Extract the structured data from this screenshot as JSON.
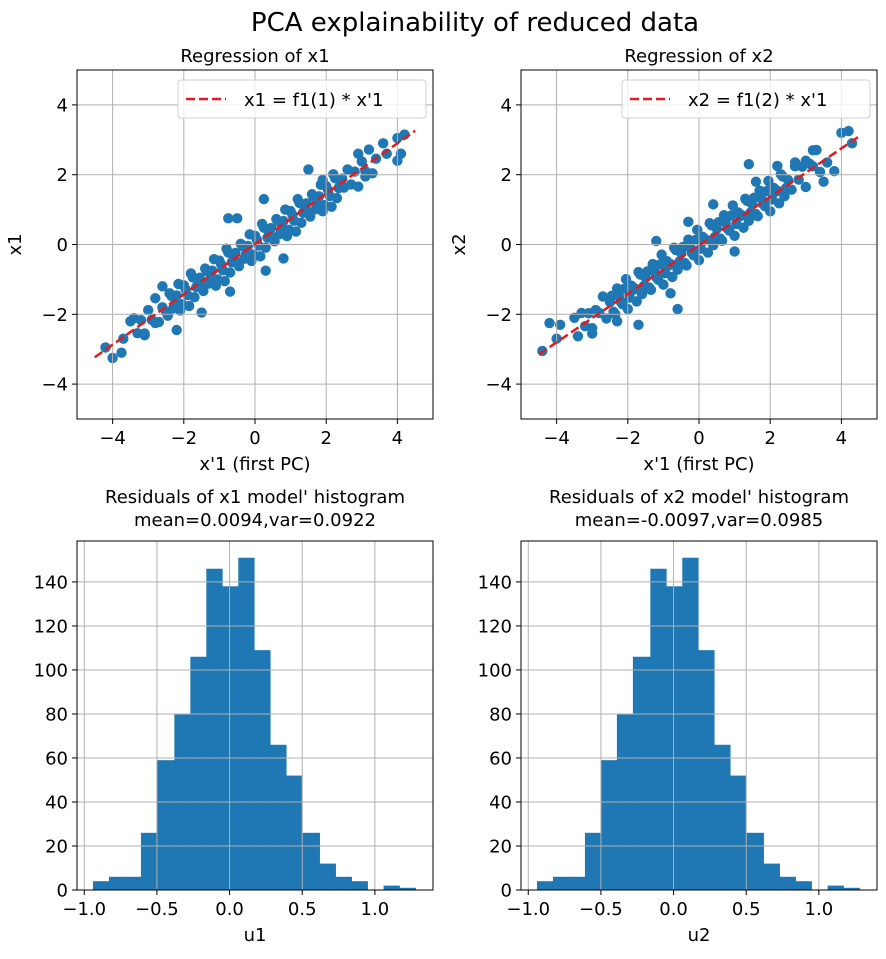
{
  "suptitle": "PCA explainability of reduced data",
  "colors": {
    "points": "#1f77b4",
    "bars": "#1f77b4",
    "fit_line": "#e41a1c",
    "grid": "#b0b0b0"
  },
  "chart_data": [
    {
      "type": "scatter",
      "title": "Regression of x1",
      "xlabel": "x'1 (first PC)",
      "ylabel": "x1",
      "xlim": [
        -5,
        5
      ],
      "ylim": [
        -5,
        5
      ],
      "xticks": [
        -4,
        -2,
        0,
        2,
        4
      ],
      "yticks": [
        -4,
        -2,
        0,
        2,
        4
      ],
      "xtick_labels": [
        "−4",
        "−2",
        "0",
        "2",
        "4"
      ],
      "ytick_labels": [
        "−4",
        "−2",
        "0",
        "2",
        "4"
      ],
      "grid": true,
      "legend": {
        "placement": "top-right",
        "label": "x1 = f1(1) * x'1"
      },
      "line": {
        "style": "dashed",
        "x": [
          -4.5,
          4.5
        ],
        "y": [
          -3.23,
          3.26
        ]
      },
      "points": [
        [
          -3.4,
          -2.11
        ],
        [
          -3.3,
          -2.54
        ],
        [
          -3.2,
          -2.17
        ],
        [
          -3.1,
          -2.6
        ],
        [
          -3.0,
          -1.88
        ],
        [
          -2.9,
          -2.16
        ],
        [
          -2.8,
          -1.54
        ],
        [
          -2.7,
          -2.22
        ],
        [
          -2.6,
          -1.8
        ],
        [
          -2.5,
          -1.93
        ],
        [
          -2.4,
          -1.4
        ],
        [
          -2.3,
          -1.83
        ],
        [
          -2.2,
          -1.46
        ],
        [
          -2.1,
          -1.89
        ],
        [
          -2.0,
          -1.17
        ],
        [
          -1.9,
          -1.45
        ],
        [
          -1.8,
          -0.83
        ],
        [
          -1.7,
          -1.51
        ],
        [
          -1.6,
          -1.09
        ],
        [
          -1.5,
          -1.22
        ],
        [
          -1.4,
          -0.69
        ],
        [
          -1.3,
          -1.12
        ],
        [
          -1.2,
          -0.75
        ],
        [
          -1.1,
          -1.18
        ],
        [
          -1.0,
          -0.46
        ],
        [
          -0.9,
          -0.74
        ],
        [
          -0.8,
          -0.12
        ],
        [
          -0.7,
          -0.8
        ],
        [
          -0.6,
          -0.38
        ],
        [
          -0.5,
          -0.51
        ],
        [
          -0.4,
          0.02
        ],
        [
          -0.3,
          -0.41
        ],
        [
          -0.2,
          -0.04
        ],
        [
          -0.1,
          -0.47
        ],
        [
          0.0,
          0.25
        ],
        [
          0.1,
          -0.03
        ],
        [
          0.2,
          0.59
        ],
        [
          0.3,
          -0.09
        ],
        [
          0.4,
          0.33
        ],
        [
          0.5,
          0.21
        ],
        [
          0.6,
          0.73
        ],
        [
          0.7,
          0.3
        ],
        [
          0.8,
          0.67
        ],
        [
          0.9,
          0.24
        ],
        [
          1.0,
          0.96
        ],
        [
          1.1,
          0.68
        ],
        [
          1.2,
          1.3
        ],
        [
          1.3,
          0.62
        ],
        [
          1.4,
          1.04
        ],
        [
          1.5,
          0.92
        ],
        [
          1.6,
          1.44
        ],
        [
          1.7,
          1.01
        ],
        [
          1.8,
          1.38
        ],
        [
          1.9,
          0.95
        ],
        [
          2.0,
          1.67
        ],
        [
          2.1,
          1.39
        ],
        [
          2.2,
          2.01
        ],
        [
          2.3,
          1.33
        ],
        [
          2.4,
          1.75
        ],
        [
          2.5,
          1.63
        ],
        [
          2.6,
          2.15
        ],
        [
          2.7,
          1.72
        ],
        [
          2.8,
          2.09
        ],
        [
          2.9,
          1.66
        ],
        [
          3.0,
          2.38
        ],
        [
          3.1,
          2.1
        ],
        [
          3.2,
          2.72
        ],
        [
          3.3,
          2.04
        ],
        [
          3.4,
          2.46
        ],
        [
          -2.45,
          -2.04
        ],
        [
          -2.35,
          -1.47
        ],
        [
          -2.25,
          -1.7
        ],
        [
          -2.15,
          -1.13
        ],
        [
          -2.05,
          -1.71
        ],
        [
          -1.95,
          -1.28
        ],
        [
          -1.85,
          -1.76
        ],
        [
          -1.75,
          -0.94
        ],
        [
          -1.65,
          -1.22
        ],
        [
          -1.55,
          -0.95
        ],
        [
          -1.45,
          -1.33
        ],
        [
          -1.35,
          -0.76
        ],
        [
          -1.25,
          -0.99
        ],
        [
          -1.15,
          -0.42
        ],
        [
          -1.05,
          -1.0
        ],
        [
          -0.95,
          -0.57
        ],
        [
          -0.85,
          -1.05
        ],
        [
          -0.75,
          -0.23
        ],
        [
          -0.65,
          -0.51
        ],
        [
          -0.55,
          -0.24
        ],
        [
          -0.45,
          -0.62
        ],
        [
          -0.35,
          -0.05
        ],
        [
          -0.25,
          -0.28
        ],
        [
          -0.15,
          0.29
        ],
        [
          -0.05,
          -0.29
        ],
        [
          0.05,
          0.14
        ],
        [
          0.15,
          -0.34
        ],
        [
          0.25,
          0.48
        ],
        [
          0.35,
          0.2
        ],
        [
          0.45,
          0.47
        ],
        [
          0.55,
          0.09
        ],
        [
          0.65,
          0.66
        ],
        [
          0.75,
          0.43
        ],
        [
          0.85,
          1.0
        ],
        [
          0.95,
          0.42
        ],
        [
          1.05,
          0.85
        ],
        [
          1.15,
          0.37
        ],
        [
          1.25,
          1.19
        ],
        [
          1.35,
          0.91
        ],
        [
          1.45,
          1.18
        ],
        [
          1.55,
          0.8
        ],
        [
          1.65,
          1.37
        ],
        [
          1.75,
          1.14
        ],
        [
          1.85,
          1.71
        ],
        [
          1.95,
          1.13
        ],
        [
          2.05,
          1.56
        ],
        [
          2.15,
          1.08
        ],
        [
          2.25,
          1.9
        ],
        [
          2.35,
          1.62
        ],
        [
          2.45,
          1.89
        ],
        [
          -4.2,
          -2.95
        ],
        [
          -4.0,
          -3.25
        ],
        [
          -3.75,
          -3.1
        ],
        [
          -3.7,
          -2.7
        ],
        [
          -3.5,
          -2.2
        ],
        [
          -3.1,
          -2.55
        ],
        [
          -2.8,
          -2.25
        ],
        [
          -2.2,
          -2.45
        ],
        [
          -1.5,
          -1.95
        ],
        [
          -0.75,
          0.75
        ],
        [
          -0.5,
          0.75
        ],
        [
          0.25,
          1.3
        ],
        [
          0.8,
          -0.4
        ],
        [
          0.3,
          -0.75
        ],
        [
          -0.7,
          -1.35
        ],
        [
          1.5,
          2.15
        ],
        [
          2.9,
          2.6
        ],
        [
          3.1,
          1.95
        ],
        [
          3.6,
          2.9
        ],
        [
          3.7,
          2.6
        ],
        [
          4.0,
          2.4
        ],
        [
          4.1,
          2.6
        ],
        [
          4.0,
          3.05
        ],
        [
          4.2,
          3.15
        ],
        [
          -2.6,
          -1.2
        ],
        [
          1.9,
          1.85
        ]
      ]
    },
    {
      "type": "scatter",
      "title": "Regression of x2",
      "xlabel": "x'1 (first PC)",
      "ylabel": "x2",
      "xlim": [
        -5,
        5
      ],
      "ylim": [
        -5,
        5
      ],
      "xticks": [
        -4,
        -2,
        0,
        2,
        4
      ],
      "yticks": [
        -4,
        -2,
        0,
        2,
        4
      ],
      "xtick_labels": [
        "−4",
        "−2",
        "0",
        "2",
        "4"
      ],
      "ytick_labels": [
        "−4",
        "−2",
        "0",
        "2",
        "4"
      ],
      "grid": true,
      "legend": {
        "placement": "top-right",
        "label": "x2 = f1(2) * x'1"
      },
      "line": {
        "style": "dashed",
        "x": [
          -4.5,
          4.5
        ],
        "y": [
          -3.15,
          3.1
        ]
      },
      "points": [
        [
          -3.4,
          -2.63
        ],
        [
          -3.3,
          -1.96
        ],
        [
          -3.2,
          -2.34
        ],
        [
          -3.1,
          -1.97
        ],
        [
          -3.0,
          -2.55
        ],
        [
          -2.9,
          -1.88
        ],
        [
          -2.8,
          -1.96
        ],
        [
          -2.7,
          -1.49
        ],
        [
          -2.6,
          -2.12
        ],
        [
          -2.5,
          -1.65
        ],
        [
          -2.4,
          -1.93
        ],
        [
          -2.3,
          -1.26
        ],
        [
          -2.2,
          -1.64
        ],
        [
          -2.1,
          -1.27
        ],
        [
          -2.0,
          -1.85
        ],
        [
          -1.9,
          -1.18
        ],
        [
          -1.8,
          -1.26
        ],
        [
          -1.7,
          -0.79
        ],
        [
          -1.6,
          -1.42
        ],
        [
          -1.5,
          -0.95
        ],
        [
          -1.4,
          -1.23
        ],
        [
          -1.3,
          -0.56
        ],
        [
          -1.2,
          -0.94
        ],
        [
          -1.1,
          -0.57
        ],
        [
          -1.0,
          -1.15
        ],
        [
          -0.9,
          -0.48
        ],
        [
          -0.8,
          -0.56
        ],
        [
          -0.7,
          -0.09
        ],
        [
          -0.6,
          -0.72
        ],
        [
          -0.5,
          -0.25
        ],
        [
          -0.4,
          -0.53
        ],
        [
          -0.3,
          0.14
        ],
        [
          -0.2,
          -0.24
        ],
        [
          -0.1,
          0.13
        ],
        [
          0.0,
          -0.45
        ],
        [
          0.1,
          0.22
        ],
        [
          0.2,
          0.14
        ],
        [
          0.3,
          0.61
        ],
        [
          0.4,
          -0.02
        ],
        [
          0.5,
          0.45
        ],
        [
          0.6,
          0.17
        ],
        [
          0.7,
          0.84
        ],
        [
          0.8,
          0.46
        ],
        [
          0.9,
          0.83
        ],
        [
          1.0,
          0.25
        ],
        [
          1.1,
          0.92
        ],
        [
          1.2,
          0.84
        ],
        [
          1.3,
          1.31
        ],
        [
          1.4,
          0.68
        ],
        [
          1.5,
          1.15
        ],
        [
          1.6,
          0.87
        ],
        [
          1.7,
          1.54
        ],
        [
          1.8,
          1.16
        ],
        [
          1.9,
          1.53
        ],
        [
          2.0,
          0.95
        ],
        [
          2.1,
          1.62
        ],
        [
          2.2,
          1.54
        ],
        [
          2.3,
          2.01
        ],
        [
          2.4,
          1.38
        ],
        [
          2.5,
          1.85
        ],
        [
          2.6,
          1.57
        ],
        [
          2.7,
          2.24
        ],
        [
          2.8,
          1.86
        ],
        [
          2.9,
          2.23
        ],
        [
          3.0,
          1.65
        ],
        [
          3.1,
          2.32
        ],
        [
          3.2,
          2.24
        ],
        [
          3.3,
          2.71
        ],
        [
          3.4,
          2.08
        ],
        [
          -2.45,
          -1.47
        ],
        [
          -2.35,
          -2.0
        ],
        [
          -2.25,
          -1.48
        ],
        [
          -2.15,
          -1.71
        ],
        [
          -2.05,
          -0.99
        ],
        [
          -1.95,
          -1.52
        ],
        [
          -1.85,
          -1.3
        ],
        [
          -1.75,
          -1.63
        ],
        [
          -1.65,
          -0.86
        ],
        [
          -1.55,
          -1.19
        ],
        [
          -1.45,
          -0.77
        ],
        [
          -1.35,
          -1.3
        ],
        [
          -1.25,
          -0.78
        ],
        [
          -1.15,
          -1.01
        ],
        [
          -1.05,
          -0.29
        ],
        [
          -0.95,
          -0.82
        ],
        [
          -0.85,
          -0.6
        ],
        [
          -0.75,
          -0.93
        ],
        [
          -0.65,
          -0.16
        ],
        [
          -0.55,
          -0.49
        ],
        [
          -0.45,
          -0.07
        ],
        [
          -0.35,
          -0.6
        ],
        [
          -0.25,
          -0.08
        ],
        [
          -0.15,
          -0.31
        ],
        [
          -0.05,
          0.42
        ],
        [
          0.05,
          -0.12
        ],
        [
          0.15,
          0.11
        ],
        [
          0.25,
          -0.23
        ],
        [
          0.35,
          0.55
        ],
        [
          0.45,
          0.22
        ],
        [
          0.55,
          0.64
        ],
        [
          0.65,
          0.11
        ],
        [
          0.75,
          0.63
        ],
        [
          0.85,
          0.4
        ],
        [
          0.95,
          1.12
        ],
        [
          1.05,
          0.59
        ],
        [
          1.15,
          0.81
        ],
        [
          1.25,
          0.48
        ],
        [
          1.35,
          1.25
        ],
        [
          1.45,
          0.92
        ],
        [
          1.55,
          1.34
        ],
        [
          1.65,
          0.81
        ],
        [
          1.75,
          1.33
        ],
        [
          1.85,
          1.1
        ],
        [
          1.95,
          1.82
        ],
        [
          2.05,
          1.29
        ],
        [
          2.15,
          1.51
        ],
        [
          2.25,
          1.18
        ],
        [
          2.35,
          1.95
        ],
        [
          2.45,
          1.62
        ],
        [
          -4.4,
          -3.05
        ],
        [
          -4.0,
          -2.7
        ],
        [
          -4.2,
          -2.25
        ],
        [
          -3.9,
          -2.3
        ],
        [
          -3.0,
          -2.4
        ],
        [
          -2.3,
          -2.2
        ],
        [
          -1.7,
          -2.3
        ],
        [
          -0.6,
          -1.85
        ],
        [
          -0.8,
          -1.4
        ],
        [
          -1.2,
          0.1
        ],
        [
          -0.3,
          0.65
        ],
        [
          0.4,
          1.15
        ],
        [
          1.4,
          2.3
        ],
        [
          1.6,
          1.8
        ],
        [
          2.2,
          2.25
        ],
        [
          2.7,
          2.35
        ],
        [
          3.0,
          2.4
        ],
        [
          3.2,
          2.7
        ],
        [
          3.6,
          2.35
        ],
        [
          3.8,
          2.1
        ],
        [
          3.5,
          1.8
        ],
        [
          4.0,
          3.2
        ],
        [
          4.2,
          3.25
        ],
        [
          4.3,
          2.9
        ],
        [
          -3.5,
          -2.1
        ],
        [
          1.0,
          -0.2
        ]
      ]
    },
    {
      "type": "bar",
      "title": "Residuals of x1 model' histogram",
      "subtitle": "mean=0.0094,var=0.0922",
      "xlabel": "u1",
      "ylabel": "",
      "xlim": [
        -1.05,
        1.4
      ],
      "ylim": [
        0,
        158.6
      ],
      "xticks": [
        -1.0,
        -0.5,
        0.0,
        0.5,
        1.0
      ],
      "yticks": [
        0,
        20,
        40,
        60,
        80,
        100,
        120,
        140
      ],
      "xtick_labels": [
        "−1.0",
        "−0.5",
        "0.0",
        "0.5",
        "1.0"
      ],
      "ytick_labels": [
        "0",
        "20",
        "40",
        "60",
        "80",
        "100",
        "120",
        "140"
      ],
      "grid": true,
      "bin_edges": [
        -0.94,
        -0.83,
        -0.72,
        -0.61,
        -0.5,
        -0.38,
        -0.27,
        -0.16,
        -0.05,
        0.06,
        0.17,
        0.28,
        0.39,
        0.5,
        0.62,
        0.73,
        0.84,
        0.95,
        1.06,
        1.17,
        1.28
      ],
      "values": [
        4,
        6,
        6,
        26,
        59,
        80,
        106,
        146,
        138,
        151,
        109,
        66,
        52,
        26,
        12,
        6,
        4,
        0,
        2,
        1
      ]
    },
    {
      "type": "bar",
      "title": "Residuals of x2 model' histogram",
      "subtitle": "mean=-0.0097,var=0.0985",
      "xlabel": "u2",
      "ylabel": "",
      "xlim": [
        -1.05,
        1.4
      ],
      "ylim": [
        0,
        158.6
      ],
      "xticks": [
        -1.0,
        -0.5,
        0.0,
        0.5,
        1.0
      ],
      "yticks": [
        0,
        20,
        40,
        60,
        80,
        100,
        120,
        140
      ],
      "xtick_labels": [
        "−1.0",
        "−0.5",
        "0.0",
        "0.5",
        "1.0"
      ],
      "ytick_labels": [
        "0",
        "20",
        "40",
        "60",
        "80",
        "100",
        "120",
        "140"
      ],
      "grid": true,
      "bin_edges": [
        -0.94,
        -0.83,
        -0.72,
        -0.61,
        -0.5,
        -0.39,
        -0.28,
        -0.16,
        -0.05,
        0.06,
        0.17,
        0.28,
        0.39,
        0.5,
        0.62,
        0.73,
        0.84,
        0.95,
        1.06,
        1.17,
        1.28
      ],
      "values": [
        4,
        6,
        6,
        26,
        59,
        80,
        106,
        146,
        138,
        151,
        109,
        66,
        52,
        26,
        12,
        6,
        4,
        0,
        2,
        1
      ]
    }
  ]
}
